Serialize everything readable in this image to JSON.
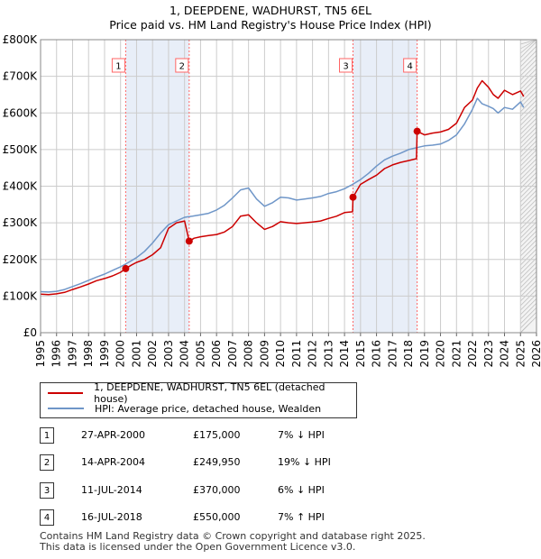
{
  "title_line1": "1, DEEPDENE, WADHURST, TN5 6EL",
  "title_line2": "Price paid vs. HM Land Registry's House Price Index (HPI)",
  "colors": {
    "property": "#cc0000",
    "hpi": "#6f96c8",
    "band": "#e8eef8",
    "vline": "#ff6666",
    "grid": "#cccccc"
  },
  "legend": {
    "property_label": "1, DEEPDENE, WADHURST, TN5 6EL (detached house)",
    "hpi_label": "HPI: Average price, detached house, Wealden"
  },
  "transactions": [
    {
      "num": "1",
      "date": "27-APR-2000",
      "price": "£175,000",
      "hpi": "7% ↓ HPI"
    },
    {
      "num": "2",
      "date": "14-APR-2004",
      "price": "£249,950",
      "hpi": "19% ↓ HPI"
    },
    {
      "num": "3",
      "date": "11-JUL-2014",
      "price": "£370,000",
      "hpi": "6% ↓ HPI"
    },
    {
      "num": "4",
      "date": "16-JUL-2018",
      "price": "£550,000",
      "hpi": "7% ↑ HPI"
    }
  ],
  "footer_line1": "Contains HM Land Registry data © Crown copyright and database right 2025.",
  "footer_line2": "This data is licensed under the Open Government Licence v3.0.",
  "chart_data": {
    "type": "line",
    "title": "1, DEEPDENE, WADHURST, TN5 6EL — Price paid vs. HM Land Registry's House Price Index (HPI)",
    "xlabel": "",
    "ylabel": "",
    "xlim": [
      1995,
      2026
    ],
    "ylim": [
      0,
      800000
    ],
    "x_ticks": [
      1995,
      1996,
      1997,
      1998,
      1999,
      2000,
      2001,
      2002,
      2003,
      2004,
      2005,
      2006,
      2007,
      2008,
      2009,
      2010,
      2011,
      2012,
      2013,
      2014,
      2015,
      2016,
      2017,
      2018,
      2019,
      2020,
      2021,
      2022,
      2023,
      2024,
      2025,
      2026
    ],
    "y_ticks": [
      0,
      100000,
      200000,
      300000,
      400000,
      500000,
      600000,
      700000,
      800000
    ],
    "y_tick_labels": [
      "£0",
      "£100K",
      "£200K",
      "£300K",
      "£400K",
      "£500K",
      "£600K",
      "£700K",
      "£800K"
    ],
    "shaded_bands": [
      [
        2000.32,
        2004.29
      ],
      [
        2014.53,
        2018.54
      ]
    ],
    "markers": [
      {
        "label": "1",
        "x": 2000.32,
        "y": 175000
      },
      {
        "label": "2",
        "x": 2004.29,
        "y": 249950
      },
      {
        "label": "3",
        "x": 2014.53,
        "y": 370000
      },
      {
        "label": "4",
        "x": 2018.54,
        "y": 550000
      }
    ],
    "hatched_from": 2025.0,
    "series": [
      {
        "name": "1, DEEPDENE, WADHURST, TN5 6EL (detached house)",
        "x": [
          1995,
          1995.5,
          1996,
          1996.5,
          1997,
          1997.5,
          1998,
          1998.5,
          1999,
          1999.5,
          2000,
          2000.32,
          2000.7,
          2001,
          2001.5,
          2002,
          2002.5,
          2003,
          2003.5,
          2004,
          2004.29,
          2004.6,
          2005,
          2005.5,
          2006,
          2006.5,
          2007,
          2007.5,
          2008,
          2008.5,
          2009,
          2009.5,
          2010,
          2010.5,
          2011,
          2011.5,
          2012,
          2012.5,
          2013,
          2013.5,
          2014,
          2014.5,
          2014.53,
          2015,
          2015.5,
          2016,
          2016.5,
          2017,
          2017.5,
          2018,
          2018.5,
          2018.54,
          2019,
          2019.5,
          2020,
          2020.5,
          2021,
          2021.5,
          2022,
          2022.3,
          2022.6,
          2023,
          2023.3,
          2023.6,
          2024,
          2024.5,
          2025,
          2025.2
        ],
        "values": [
          105000,
          104000,
          106000,
          110000,
          118000,
          125000,
          133000,
          142000,
          148000,
          155000,
          165000,
          175000,
          185000,
          192000,
          200000,
          213000,
          232000,
          285000,
          300000,
          305000,
          249950,
          258000,
          262000,
          265000,
          268000,
          275000,
          290000,
          318000,
          322000,
          300000,
          282000,
          290000,
          303000,
          300000,
          298000,
          300000,
          302000,
          305000,
          312000,
          318000,
          328000,
          330000,
          370000,
          405000,
          418000,
          430000,
          448000,
          458000,
          465000,
          470000,
          475000,
          550000,
          540000,
          545000,
          548000,
          555000,
          572000,
          615000,
          635000,
          668000,
          688000,
          670000,
          650000,
          640000,
          662000,
          650000,
          660000,
          645000
        ]
      },
      {
        "name": "HPI: Average price, detached house, Wealden",
        "x": [
          1995,
          1995.5,
          1996,
          1996.5,
          1997,
          1997.5,
          1998,
          1998.5,
          1999,
          1999.5,
          2000,
          2000.5,
          2001,
          2001.5,
          2002,
          2002.5,
          2003,
          2003.5,
          2004,
          2004.5,
          2005,
          2005.5,
          2006,
          2006.5,
          2007,
          2007.5,
          2008,
          2008.5,
          2009,
          2009.5,
          2010,
          2010.5,
          2011,
          2011.5,
          2012,
          2012.5,
          2013,
          2013.5,
          2014,
          2014.5,
          2015,
          2015.5,
          2016,
          2016.5,
          2017,
          2017.5,
          2018,
          2018.5,
          2019,
          2019.5,
          2020,
          2020.5,
          2021,
          2021.5,
          2022,
          2022.3,
          2022.6,
          2023,
          2023.3,
          2023.6,
          2024,
          2024.5,
          2025,
          2025.2
        ],
        "values": [
          112000,
          111000,
          113000,
          118000,
          126000,
          134000,
          143000,
          152000,
          160000,
          170000,
          180000,
          192000,
          205000,
          222000,
          245000,
          272000,
          295000,
          305000,
          315000,
          318000,
          322000,
          326000,
          335000,
          348000,
          368000,
          390000,
          395000,
          365000,
          345000,
          355000,
          370000,
          368000,
          362000,
          365000,
          368000,
          372000,
          380000,
          385000,
          393000,
          405000,
          418000,
          435000,
          455000,
          472000,
          482000,
          490000,
          500000,
          505000,
          510000,
          512000,
          515000,
          525000,
          540000,
          570000,
          610000,
          640000,
          625000,
          618000,
          612000,
          600000,
          615000,
          610000,
          630000,
          615000
        ]
      }
    ]
  }
}
